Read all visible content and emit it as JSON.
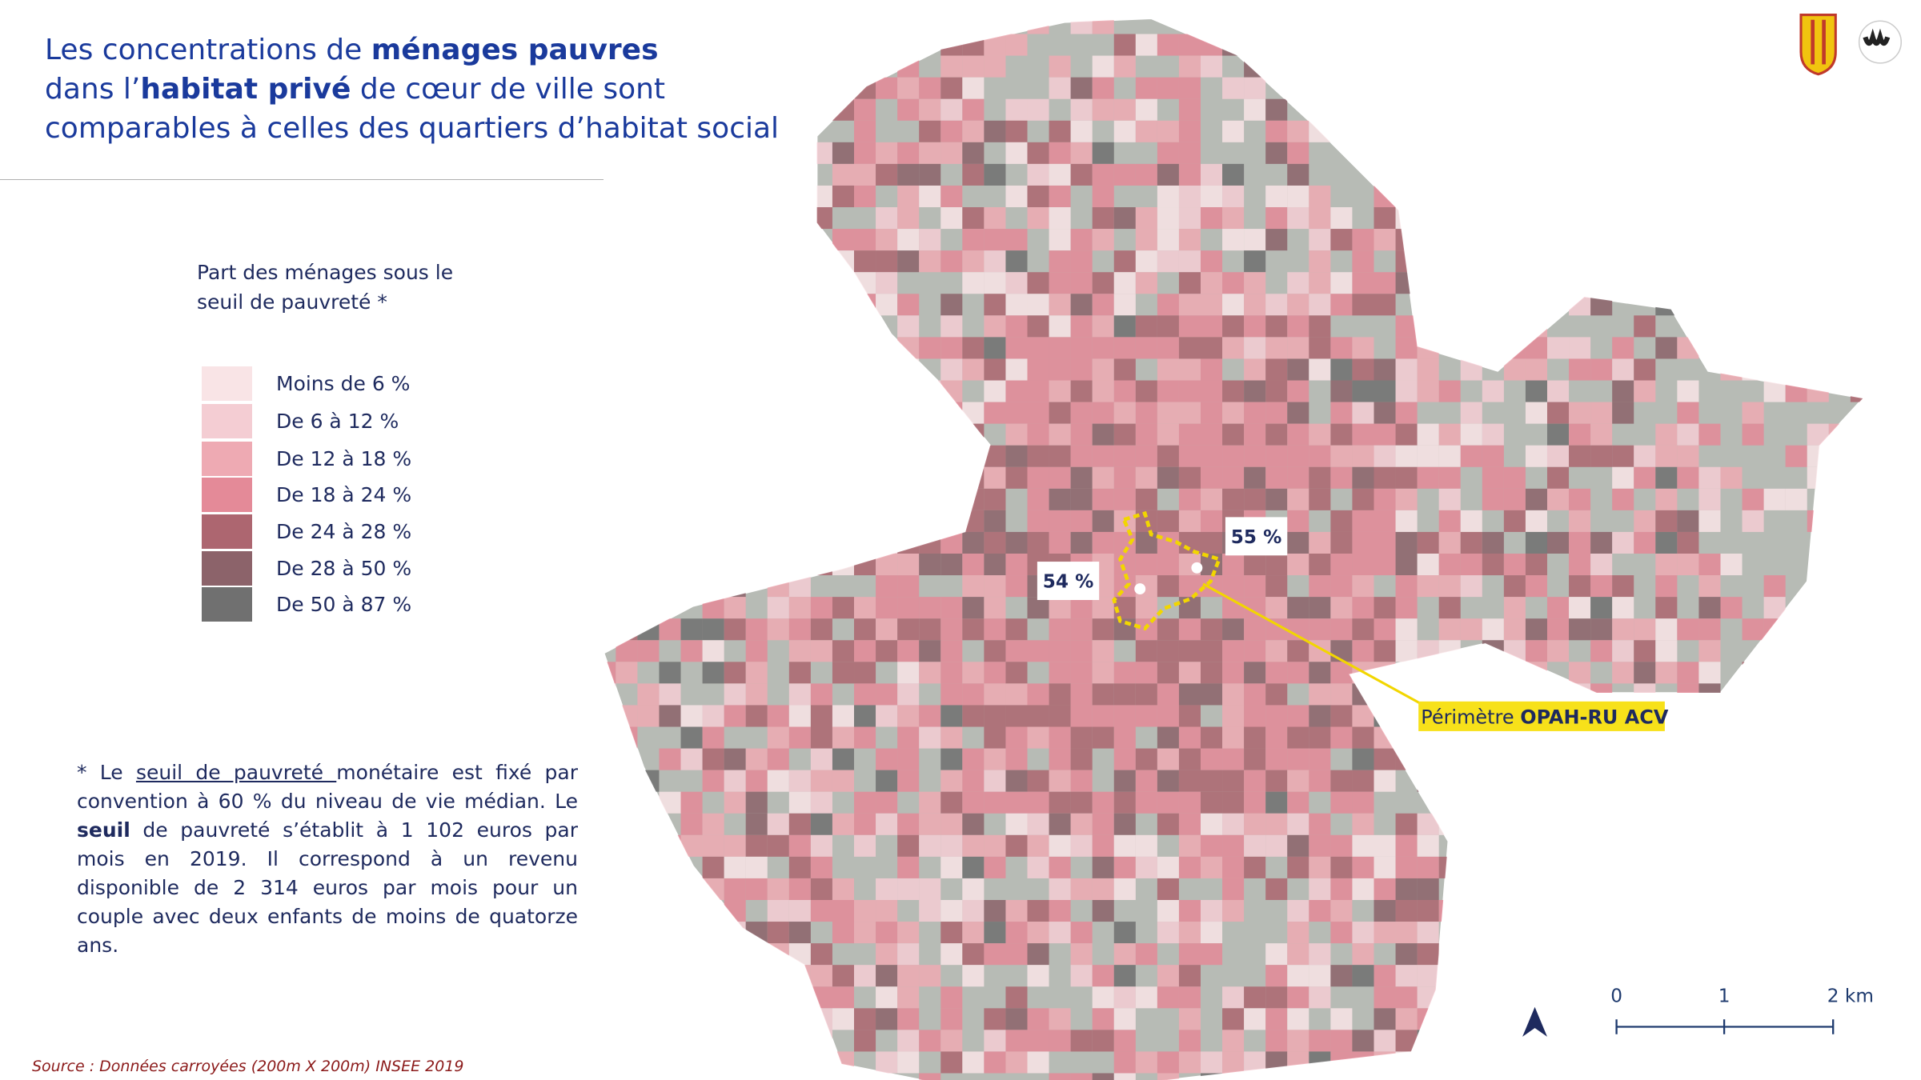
{
  "header": {
    "title": [
      "Les concentrations de ",
      "ménages pauvres",
      "dans l’",
      "habitat privé",
      " de cœur de ville sont",
      "comparables à celles des quartiers d’habitat social"
    ]
  },
  "legend": {
    "title": [
      "Part des ménages sous le",
      "seuil de pauvreté *"
    ],
    "items": [
      {
        "label": "Moins de 6 %",
        "color": "#f9e4e6"
      },
      {
        "label": "De 6 à 12 %",
        "color": "#f4cdd3"
      },
      {
        "label": "De 12 à 18 %",
        "color": "#eeaab3"
      },
      {
        "label": "De 18 à 24 %",
        "color": "#e48a98"
      },
      {
        "label": "De 24 à 28 %",
        "color": "#ad6670"
      },
      {
        "label": "De 28 à 50 %",
        "color": "#8c636a"
      },
      {
        "label": "De 50 à 87 %",
        "color": "#707070"
      }
    ]
  },
  "map": {
    "markers": [
      {
        "label": "54 %"
      },
      {
        "label": "55 %"
      }
    ],
    "perimeter_label": [
      "Périmètre ",
      "OPAH-RU ACV"
    ],
    "scale_labels": [
      "0",
      "1",
      "2 km"
    ]
  },
  "footnote": [
    "* Le ",
    "seuil de pauvreté ",
    "monétaire est fixé par convention à 60 % du niveau de vie médian. Le ",
    "seuil",
    " de pauvreté s’établit à 1 102 euros par mois en 2019. Il correspond à un revenu disponible de 2 314 euros par mois pour un couple avec deux enfants de moins de quatorze ans."
  ],
  "source": "Source : Données carroyées (200m X 200m) INSEE 2019"
}
